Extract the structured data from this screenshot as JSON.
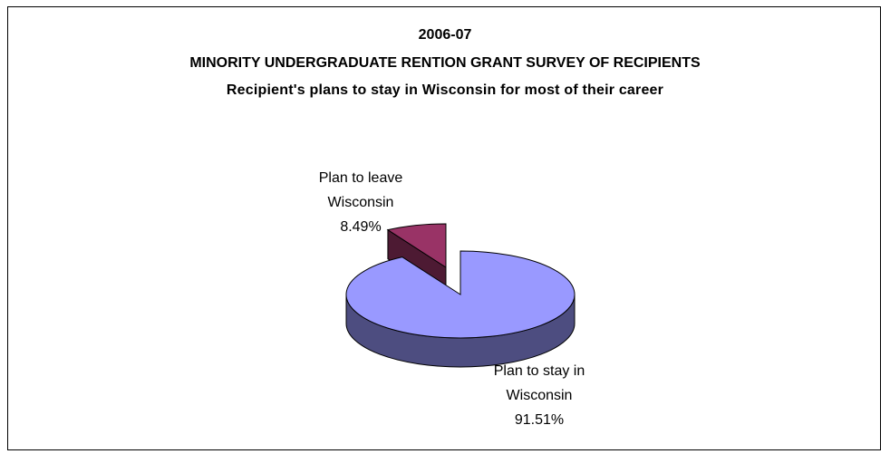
{
  "chart_data": {
    "type": "pie",
    "style": "3d-exploded",
    "title_lines": [
      "2006-07",
      "MINORITY UNDERGRADUATE RENTION GRANT SURVEY OF RECIPIENTS",
      "Recipient's plans to stay in Wisconsin for most of their career"
    ],
    "slices": [
      {
        "label_lines": [
          "Plan to stay in",
          "Wisconsin",
          "91.51%"
        ],
        "value": 91.51,
        "color": "#9999ff",
        "side_color": "#4d4d80"
      },
      {
        "label_lines": [
          "Plan to leave",
          "Wisconsin",
          "8.49%"
        ],
        "value": 8.49,
        "color": "#993366",
        "side_color": "#4d1a33"
      }
    ],
    "legend": "none"
  }
}
